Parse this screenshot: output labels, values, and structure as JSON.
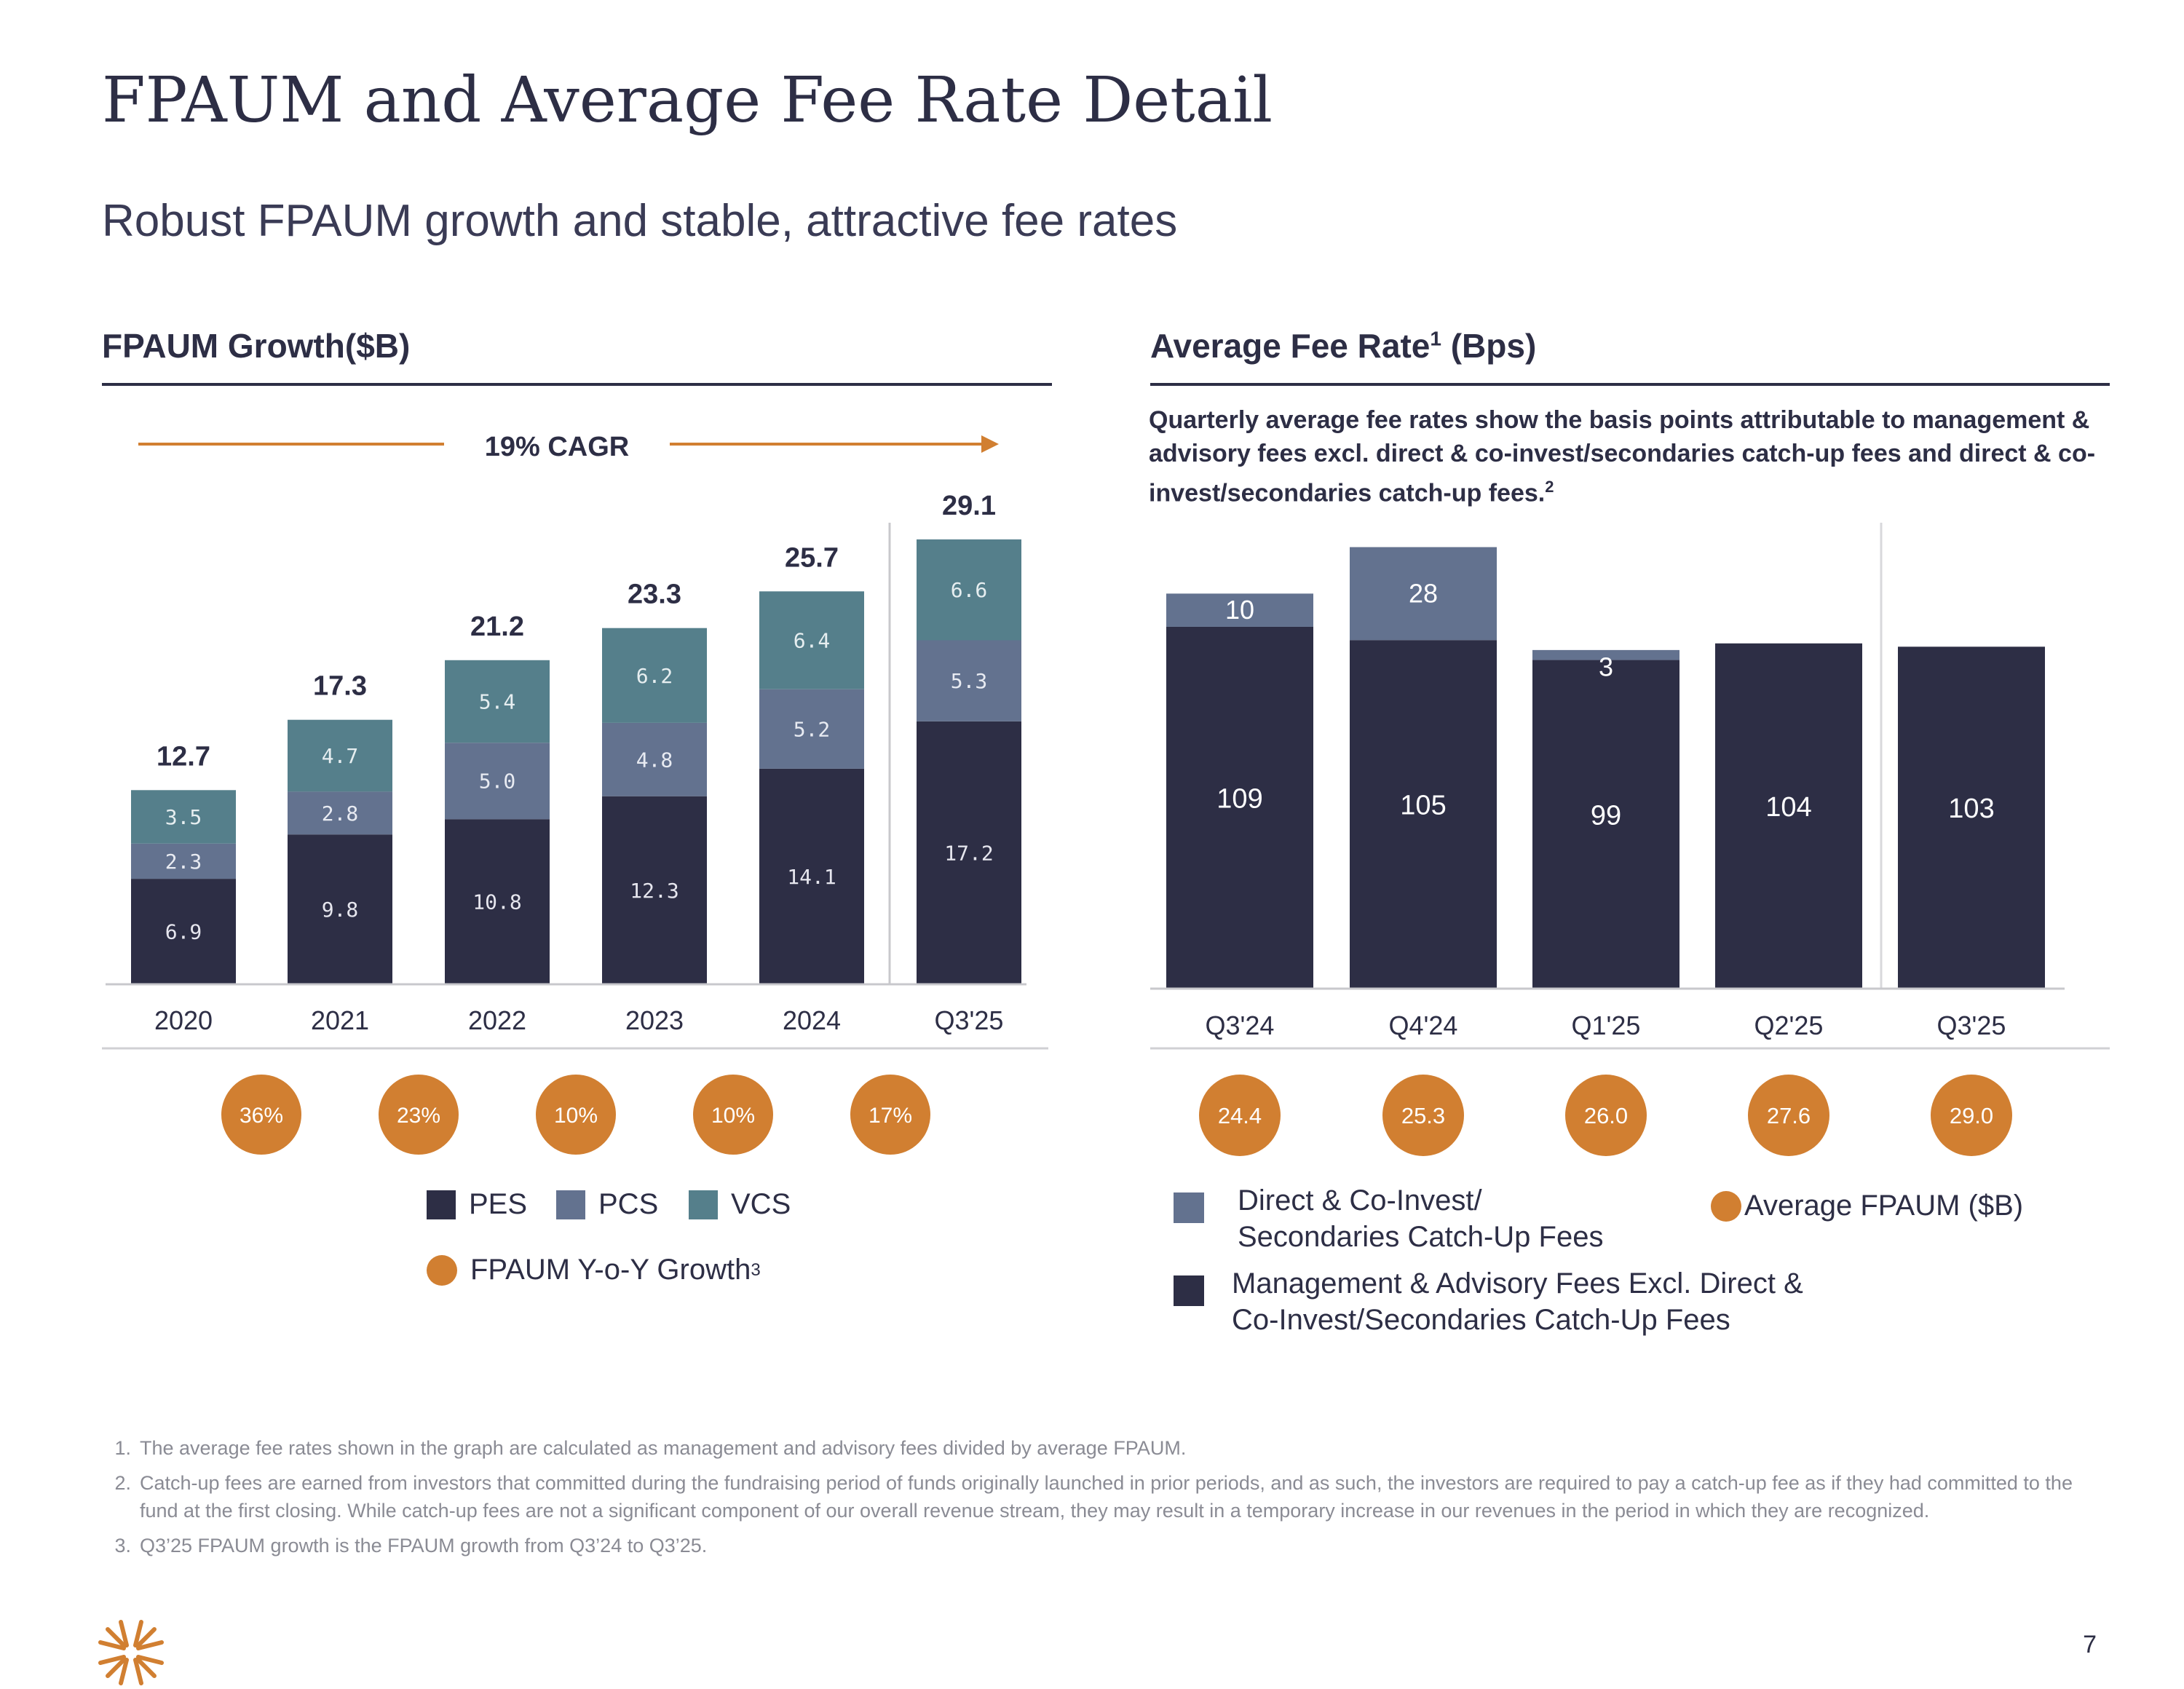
{
  "page": {
    "title": "FPAUM and Average Fee Rate Detail",
    "subtitle": "Robust FPAUM growth and stable, attractive fee rates",
    "page_number": "7"
  },
  "colors": {
    "pes": "#2d2e45",
    "pcs": "#63728f",
    "vcs": "#557f8b",
    "accent": "#d17f31",
    "rule": "#2d2e45",
    "grid": "#c8c8cc"
  },
  "left": {
    "heading": "FPAUM Growth($B)",
    "cagr_label": "19% CAGR",
    "legend": {
      "pes": "PES",
      "pcs": "PCS",
      "vcs": "VCS",
      "growth": "FPAUM Y-o-Y Growth",
      "growth_sup": "3"
    }
  },
  "right": {
    "heading": "Average Fee Rate",
    "heading_sup": "1",
    "heading_suffix": " (Bps)",
    "description": "Quarterly average fee rates show the basis points attributable to management & advisory fees excl. direct & co-invest/secondaries catch-up fees and direct & co-invest/secondaries catch-up fees.",
    "description_sup": "2",
    "legend": {
      "catchup_line1": "Direct & Co-Invest/",
      "catchup_line2": "Secondaries Catch-Up Fees",
      "mgmt_line1": "Management & Advisory Fees Excl. Direct &",
      "mgmt_line2": "Co-Invest/Secondaries Catch-Up Fees",
      "avg_fpaum": "Average FPAUM ($B)"
    }
  },
  "chart_data": [
    {
      "type": "bar",
      "stacked": true,
      "title": "FPAUM Growth($B)",
      "categories": [
        "2020",
        "2021",
        "2022",
        "2023",
        "2024",
        "Q3'25"
      ],
      "series": [
        {
          "name": "PES",
          "values": [
            6.9,
            9.8,
            10.8,
            12.3,
            14.1,
            17.2
          ]
        },
        {
          "name": "PCS",
          "values": [
            2.3,
            2.8,
            5.0,
            4.8,
            5.2,
            5.3
          ]
        },
        {
          "name": "VCS",
          "values": [
            3.5,
            4.7,
            5.4,
            6.2,
            6.4,
            6.6
          ]
        }
      ],
      "totals": [
        "12.7",
        "17.3",
        "21.2",
        "23.3",
        "25.7",
        "29.1"
      ],
      "segment_labels": [
        [
          "6.9",
          "9.8",
          "10.8",
          "12.3",
          "14.1",
          "17.2"
        ],
        [
          "2.3",
          "2.8",
          "5.0",
          "4.8",
          "5.2",
          "5.3"
        ],
        [
          "3.5",
          "4.7",
          "5.4",
          "6.2",
          "6.4",
          "6.6"
        ]
      ],
      "yoy_growth": [
        "36%",
        "23%",
        "10%",
        "10%",
        "17%"
      ],
      "annotation": "19% CAGR",
      "ylim": [
        0,
        32
      ]
    },
    {
      "type": "bar",
      "stacked": true,
      "title": "Average Fee Rate (Bps)",
      "categories": [
        "Q3'24",
        "Q4'24",
        "Q1'25",
        "Q2'25",
        "Q3'25"
      ],
      "series": [
        {
          "name": "Management & Advisory Fees Excl. Direct & Co-Invest/Secondaries Catch-Up Fees",
          "values": [
            109,
            105,
            99,
            104,
            103
          ]
        },
        {
          "name": "Direct & Co-Invest/Secondaries Catch-Up Fees",
          "values": [
            10,
            28,
            3,
            0,
            0
          ]
        }
      ],
      "mgmt_labels": [
        "109",
        "105",
        "99",
        "104",
        "103"
      ],
      "catchup_labels": [
        "10",
        "28",
        "3",
        "",
        ""
      ],
      "average_fpaum": [
        "24.4",
        "25.3",
        "26.0",
        "27.6",
        "29.0"
      ],
      "ylim": [
        0,
        140
      ]
    }
  ],
  "footnotes": [
    {
      "num": "1.",
      "text": "The average fee rates shown in the graph are calculated as management and advisory fees divided by average FPAUM."
    },
    {
      "num": "2.",
      "text": "Catch-up fees are earned from investors that committed during the fundraising period of funds originally launched in prior periods, and as such, the investors are required to pay a catch-up fee as if they had committed to the fund at the first closing. While catch-up fees are not a significant component of our overall revenue stream, they may result in a temporary increase in our revenues in the period in which they are recognized."
    },
    {
      "num": "3.",
      "text": "Q3’25 FPAUM growth is the FPAUM growth from Q3’24 to Q3’25."
    }
  ]
}
